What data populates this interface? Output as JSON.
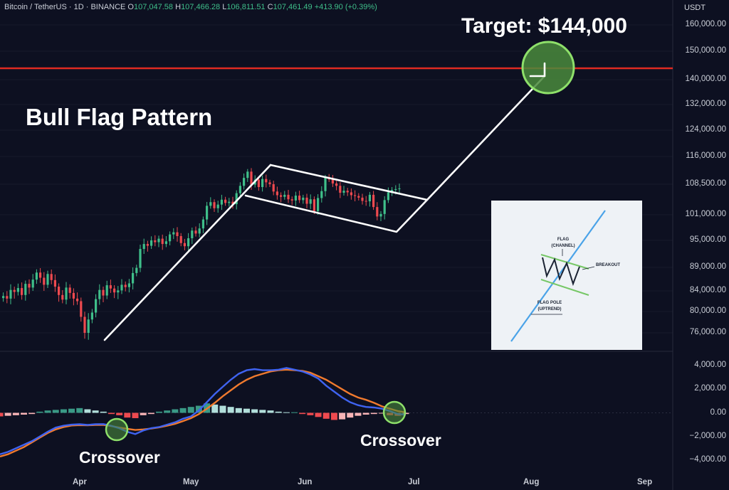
{
  "header": {
    "symbol": "Bitcoin / TetherUS · 1D · BINANCE",
    "o_label": "O",
    "o_value": "107,047.58",
    "h_label": "H",
    "h_value": "107,466.28",
    "l_label": "L",
    "l_value": "106,811.51",
    "c_label": "C",
    "c_value": "107,461.49",
    "change": "+413.90 (+0.39%)"
  },
  "currency": "USDT",
  "annotations": {
    "title": "Bull Flag Pattern",
    "target": "Target: $144,000",
    "crossover_left": "Crossover",
    "crossover_right": "Crossover"
  },
  "inset": {
    "flag": "FLAG",
    "channel": "(CHANNEL)",
    "breakout": "BREAKOUT",
    "flag_pole": "FLAG POLE",
    "uptrend": "(UPTREND)"
  },
  "colors": {
    "background": "#0d1021",
    "bull": "#3fbf8a",
    "bear": "#ee4a4f",
    "target_line": "#e02b22",
    "macd": "#3f63f0",
    "signal": "#f07a2e",
    "highlight": "#7cd35a"
  },
  "chart_data": {
    "type": "candlestick",
    "price_axis_ticks": [
      "160,000.00",
      "150,000.00",
      "140,000.00",
      "132,000.00",
      "124,000.00",
      "116,000.00",
      "108,500.00",
      "101,000.00",
      "95,000.00",
      "89,000.00",
      "84,000.00",
      "80,000.00",
      "76,000.00"
    ],
    "macd_axis_ticks": [
      "4,000.00",
      "2,000.00",
      "0.00",
      "−2,000.00",
      "−4,000.00"
    ],
    "x_ticks": [
      "Apr",
      "May",
      "Jun",
      "Jul",
      "Aug",
      "Sep"
    ],
    "target_level": 144000,
    "price_range": [
      72000,
      162000
    ],
    "macd_range": [
      -4600,
      4600
    ],
    "candles_close": [
      83000,
      82500,
      84200,
      83800,
      84600,
      83200,
      85500,
      84700,
      86400,
      87900,
      86800,
      85300,
      87600,
      86300,
      84900,
      83200,
      82300,
      84700,
      83600,
      82500,
      82000,
      79000,
      76000,
      78500,
      79800,
      82400,
      84200,
      83100,
      85200,
      84500,
      83700,
      84100,
      85300,
      84800,
      85600,
      87800,
      88900,
      93100,
      94200,
      93800,
      95000,
      94600,
      95400,
      94200,
      94800,
      96400,
      96900,
      96000,
      94400,
      93700,
      95500,
      97300,
      96600,
      97800,
      99900,
      103200,
      104100,
      102600,
      103500,
      104700,
      103900,
      104200,
      103600,
      106300,
      108100,
      110200,
      111900,
      108400,
      109700,
      107800,
      109900,
      109000,
      108500,
      106700,
      105800,
      105400,
      105900,
      104800,
      104500,
      105700,
      104600,
      105200,
      103700,
      104800,
      101900,
      105100,
      106800,
      110300,
      109800,
      108700,
      108100,
      106400,
      106900,
      106500,
      105800,
      105600,
      105200,
      104400,
      104300,
      105900,
      102900,
      100600,
      101200,
      104600,
      106500,
      107100,
      107300,
      107461
    ]
  },
  "macd_data": {
    "macd": [
      -3500,
      -3300,
      -3000,
      -2700,
      -2400,
      -2000,
      -1600,
      -1250,
      -1080,
      -1000,
      -960,
      -1020,
      -960,
      -950,
      -1100,
      -1300,
      -1600,
      -1800,
      -1500,
      -1300,
      -1200,
      -1000,
      -800,
      -500,
      -300,
      200,
      900,
      1600,
      2200,
      2800,
      3300,
      3600,
      3700,
      3600,
      3600,
      3650,
      3800,
      3650,
      3500,
      3250,
      2900,
      2300,
      1800,
      1300,
      900,
      650,
      500,
      450,
      350,
      150,
      -100,
      -150
    ],
    "signal": [
      -3700,
      -3500,
      -3200,
      -2900,
      -2500,
      -2100,
      -1700,
      -1400,
      -1200,
      -1070,
      -1040,
      -1060,
      -1020,
      -1020,
      -1120,
      -1250,
      -1350,
      -1450,
      -1400,
      -1330,
      -1230,
      -1090,
      -930,
      -700,
      -450,
      -100,
      350,
      850,
      1400,
      1900,
      2400,
      2800,
      3100,
      3300,
      3500,
      3600,
      3650,
      3600,
      3550,
      3400,
      3100,
      2800,
      2400,
      2000,
      1600,
      1300,
      1100,
      850,
      550,
      350,
      150,
      50
    ],
    "histogram": [
      -300,
      -250,
      -200,
      -150,
      -100,
      100,
      200,
      250,
      300,
      350,
      400,
      300,
      200,
      100,
      -100,
      -200,
      -400,
      -450,
      -200,
      -100,
      100,
      200,
      300,
      400,
      500,
      600,
      800,
      700,
      600,
      500,
      400,
      350,
      300,
      250,
      200,
      100,
      50,
      50,
      -100,
      -200,
      -350,
      -500,
      -600,
      -550,
      -400,
      -250,
      -150,
      -100,
      -50,
      -200,
      -250,
      -100
    ]
  }
}
